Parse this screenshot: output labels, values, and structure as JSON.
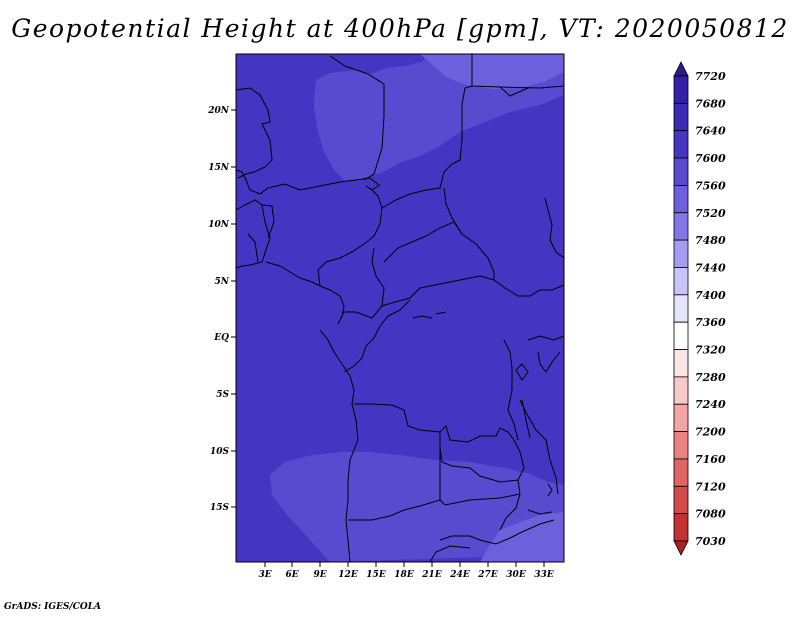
{
  "title": "Geopotential Height at 400hPa [gpm], VT: 2020050812",
  "credit": "GrADS: IGES/COLA",
  "lat_labels": [
    "20N",
    "15N",
    "10N",
    "5N",
    "EQ",
    "5S",
    "10S",
    "15S"
  ],
  "lon_labels": [
    "3E",
    "6E",
    "9E",
    "12E",
    "15E",
    "18E",
    "21E",
    "24E",
    "27E",
    "30E",
    "33E"
  ],
  "colorbar": {
    "levels": [
      "7720",
      "7680",
      "7640",
      "7600",
      "7560",
      "7520",
      "7480",
      "7440",
      "7400",
      "7360",
      "7320",
      "7280",
      "7240",
      "7200",
      "7160",
      "7120",
      "7080",
      "7030"
    ],
    "colors": [
      "#2b1a8e",
      "#3320a6",
      "#3a2ab5",
      "#4535c3",
      "#5a4ad0",
      "#6d60dc",
      "#8576e8",
      "#a79cf2",
      "#cbc5f7",
      "#e6e4fb",
      "#ffffff",
      "#fce5e5",
      "#f8c9c9",
      "#f2a5a5",
      "#eb8282",
      "#e06565",
      "#d44a4a",
      "#c23434",
      "#a82222"
    ]
  },
  "map_colors": {
    "base": "#4535c3",
    "mid": "#5a4ad0",
    "light": "#6d60dc",
    "lighter": "#8576e8"
  }
}
